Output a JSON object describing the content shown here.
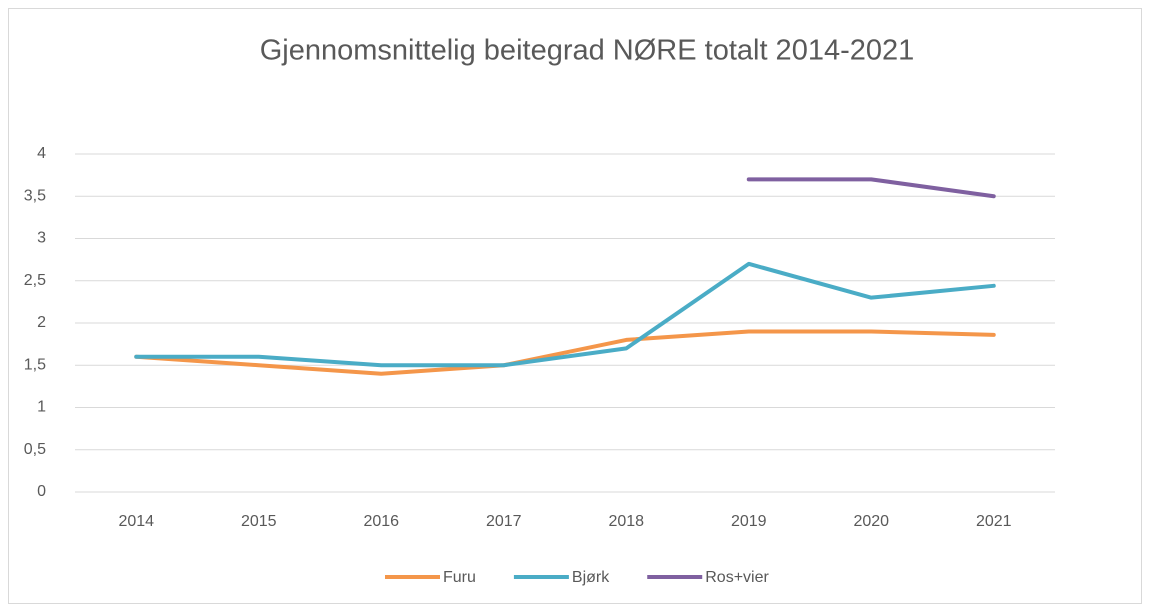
{
  "chart_data": {
    "type": "line",
    "title": "Gjennomsnittelig beitegrad NØRE totalt 2014-2021",
    "categories": [
      "2014",
      "2015",
      "2016",
      "2017",
      "2018",
      "2019",
      "2020",
      "2021"
    ],
    "series": [
      {
        "name": "Furu",
        "color": "#f4964a",
        "values": [
          1.6,
          1.5,
          1.4,
          1.5,
          1.8,
          1.9,
          1.9,
          1.86
        ]
      },
      {
        "name": "Bjørk",
        "color": "#4aacc6",
        "values": [
          1.6,
          1.6,
          1.5,
          1.5,
          1.7,
          2.7,
          2.3,
          2.44
        ]
      },
      {
        "name": "Ros+vier",
        "color": "#7f60a0",
        "values": [
          null,
          null,
          null,
          null,
          null,
          3.7,
          3.7,
          3.5
        ]
      }
    ],
    "ylim": [
      0,
      4
    ],
    "yticks": [
      0,
      {
        "value": 0.5,
        "label": "0,5"
      },
      1,
      {
        "value": 1.5,
        "label": "1,5"
      },
      2,
      {
        "value": 2.5,
        "label": "2,5"
      },
      3,
      {
        "value": 3.5,
        "label": "3,5"
      },
      4
    ],
    "grid": true,
    "legend": "bottom"
  }
}
